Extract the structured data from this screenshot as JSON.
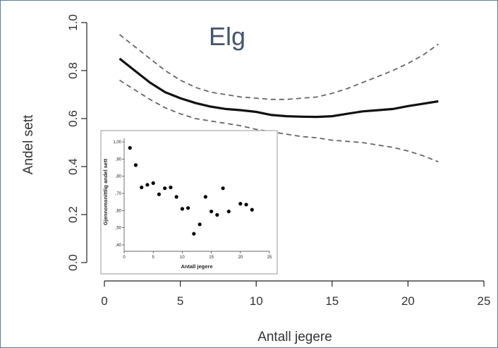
{
  "chart_data": [
    {
      "type": "line",
      "title": "Elg",
      "xlabel": "Antall jegere",
      "ylabel": "Andel sett",
      "xlim": [
        0,
        25
      ],
      "ylim": [
        0.0,
        1.0
      ],
      "xticks": [
        "0",
        "5",
        "10",
        "15",
        "20",
        "25"
      ],
      "yticks": [
        "0.0",
        "0.2",
        "0.4",
        "0.6",
        "0.8",
        "1.0"
      ],
      "x": [
        1,
        2,
        3,
        4,
        5,
        6,
        7,
        8,
        9,
        10,
        11,
        12,
        13,
        14,
        15,
        16,
        17,
        18,
        19,
        20,
        21,
        22
      ],
      "series": [
        {
          "style": "solid",
          "values": [
            0.85,
            0.8,
            0.75,
            0.71,
            0.685,
            0.665,
            0.65,
            0.64,
            0.635,
            0.628,
            0.615,
            0.61,
            0.608,
            0.607,
            0.61,
            0.62,
            0.63,
            0.635,
            0.64,
            0.652,
            0.662,
            0.672
          ]
        },
        {
          "style": "dashed",
          "values": [
            0.95,
            0.9,
            0.85,
            0.8,
            0.76,
            0.73,
            0.71,
            0.7,
            0.69,
            0.685,
            0.68,
            0.68,
            0.685,
            0.69,
            0.705,
            0.725,
            0.75,
            0.775,
            0.8,
            0.83,
            0.865,
            0.91
          ]
        },
        {
          "style": "dashed",
          "values": [
            0.76,
            0.72,
            0.68,
            0.645,
            0.62,
            0.6,
            0.59,
            0.58,
            0.57,
            0.555,
            0.545,
            0.535,
            0.525,
            0.52,
            0.51,
            0.505,
            0.5,
            0.49,
            0.48,
            0.465,
            0.445,
            0.42
          ]
        }
      ]
    },
    {
      "type": "scatter",
      "xlabel": "Antall jegere",
      "ylabel": "Gjennomsnittlig andel sett",
      "xlim": [
        0,
        25
      ],
      "ylim": [
        0.4,
        1.0
      ],
      "xticks": [
        "0",
        "5",
        "10",
        "15",
        "20",
        "25"
      ],
      "yticks": [
        ",40",
        ",50",
        ",60",
        ",70",
        ",80",
        ",90",
        "1,00"
      ],
      "points": [
        [
          1,
          0.965
        ],
        [
          2,
          0.865
        ],
        [
          3,
          0.735
        ],
        [
          4,
          0.75
        ],
        [
          5,
          0.76
        ],
        [
          6,
          0.695
        ],
        [
          7,
          0.73
        ],
        [
          8,
          0.735
        ],
        [
          9,
          0.68
        ],
        [
          10,
          0.61
        ],
        [
          11,
          0.615
        ],
        [
          12,
          0.465
        ],
        [
          13,
          0.52
        ],
        [
          14,
          0.68
        ],
        [
          15,
          0.595
        ],
        [
          16,
          0.575
        ],
        [
          17,
          0.73
        ],
        [
          18,
          0.595
        ],
        [
          20,
          0.64
        ],
        [
          21,
          0.635
        ],
        [
          22,
          0.605
        ]
      ]
    }
  ]
}
